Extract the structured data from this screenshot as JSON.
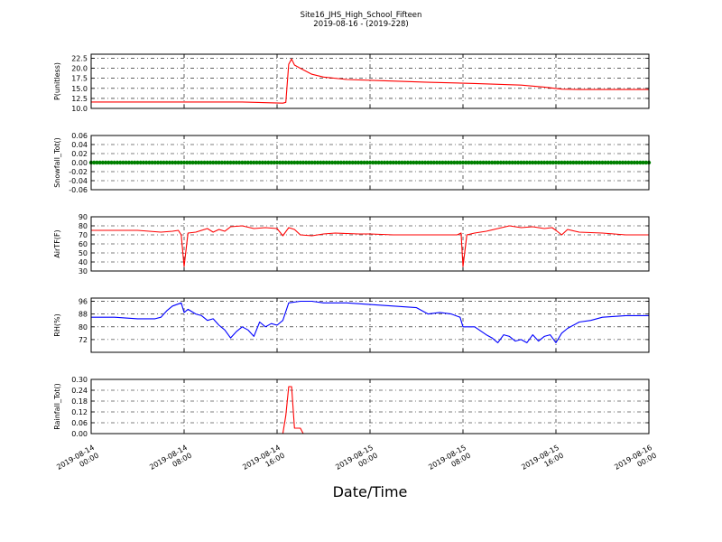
{
  "figure": {
    "title_line1": "Site16_JHS_High_School_Fifteen",
    "title_line2": "2019-08-16 - (2019-228)",
    "xlabel": "Date/Time"
  },
  "chart_data": {
    "type": "line",
    "x_range": [
      "2019-08-14 00:00",
      "2019-08-16 00:00"
    ],
    "x_ticks": [
      {
        "line1": "2019-08-14",
        "line2": "00:00"
      },
      {
        "line1": "2019-08-14",
        "line2": "08:00"
      },
      {
        "line1": "2019-08-14",
        "line2": "16:00"
      },
      {
        "line1": "2019-08-15",
        "line2": "00:00"
      },
      {
        "line1": "2019-08-15",
        "line2": "08:00"
      },
      {
        "line1": "2019-08-15",
        "line2": "16:00"
      },
      {
        "line1": "2019-08-16",
        "line2": "00:00"
      }
    ],
    "grid": true,
    "panels": [
      {
        "ylabel": "P(unitless)",
        "color": "#ff0000",
        "marker": "none",
        "ylim": [
          10.0,
          23.5
        ],
        "yticks": [
          10.0,
          12.5,
          15.0,
          17.5,
          20.0,
          22.5
        ],
        "tick_decimals": 1,
        "x": [
          "2019-08-14 00:00",
          "2019-08-14 08:00",
          "2019-08-14 13:00",
          "2019-08-14 16:30",
          "2019-08-14 16:45",
          "2019-08-14 17:00",
          "2019-08-14 17:15",
          "2019-08-14 17:30",
          "2019-08-14 18:00",
          "2019-08-14 19:00",
          "2019-08-14 20:00",
          "2019-08-14 22:00",
          "2019-08-15 01:00",
          "2019-08-15 05:00",
          "2019-08-15 09:00",
          "2019-08-15 11:00",
          "2019-08-15 13:00",
          "2019-08-15 15:00",
          "2019-08-15 16:30",
          "2019-08-15 18:00",
          "2019-08-15 21:00",
          "2019-08-16 00:00"
        ],
        "y": [
          11.6,
          11.6,
          11.6,
          11.3,
          11.5,
          21.0,
          22.3,
          20.8,
          20.0,
          18.5,
          17.8,
          17.2,
          16.9,
          16.5,
          16.2,
          16.0,
          15.8,
          15.3,
          14.8,
          14.7,
          14.7,
          14.7
        ]
      },
      {
        "ylabel": "Snowfall_Tot()",
        "color": "#008000",
        "marker": "dot",
        "ylim": [
          -0.06,
          0.06
        ],
        "yticks": [
          -0.06,
          -0.04,
          -0.02,
          0.0,
          0.02,
          0.04,
          0.06
        ],
        "tick_decimals": 2,
        "x": [
          "2019-08-14 00:00",
          "2019-08-16 00:00"
        ],
        "y": [
          0.0,
          0.0
        ],
        "point_interval_minutes": 15
      },
      {
        "ylabel": "AirTF(F)",
        "color": "#ff0000",
        "marker": "none",
        "ylim": [
          30,
          90
        ],
        "yticks": [
          30,
          40,
          50,
          60,
          70,
          80,
          90
        ],
        "tick_decimals": 0,
        "x": [
          "2019-08-14 00:00",
          "2019-08-14 04:00",
          "2019-08-14 05:00",
          "2019-08-14 06:00",
          "2019-08-14 07:00",
          "2019-08-14 07:30",
          "2019-08-14 07:45",
          "2019-08-14 08:00",
          "2019-08-14 08:20",
          "2019-08-14 09:00",
          "2019-08-14 10:00",
          "2019-08-14 10:30",
          "2019-08-14 11:00",
          "2019-08-14 11:30",
          "2019-08-14 12:00",
          "2019-08-14 13:00",
          "2019-08-14 14:00",
          "2019-08-14 15:00",
          "2019-08-14 16:00",
          "2019-08-14 16:30",
          "2019-08-14 17:00",
          "2019-08-14 17:30",
          "2019-08-14 18:00",
          "2019-08-14 19:00",
          "2019-08-14 20:00",
          "2019-08-14 21:00",
          "2019-08-14 23:00",
          "2019-08-15 00:00",
          "2019-08-15 02:00",
          "2019-08-15 04:00",
          "2019-08-15 06:00",
          "2019-08-15 07:30",
          "2019-08-15 07:50",
          "2019-08-15 08:00",
          "2019-08-15 08:20",
          "2019-08-15 09:00",
          "2019-08-15 10:00",
          "2019-08-15 11:00",
          "2019-08-15 12:00",
          "2019-08-15 13:00",
          "2019-08-15 14:00",
          "2019-08-15 15:00",
          "2019-08-15 15:40",
          "2019-08-15 16:00",
          "2019-08-15 16:30",
          "2019-08-15 17:00",
          "2019-08-15 18:00",
          "2019-08-15 20:00",
          "2019-08-15 22:00",
          "2019-08-16 00:00"
        ],
        "y": [
          75,
          75,
          74,
          73,
          74,
          75,
          70,
          35,
          72,
          73,
          77,
          73,
          76,
          74,
          79,
          80,
          77,
          78,
          77,
          69,
          78,
          76,
          70,
          69,
          71,
          72,
          71,
          71,
          70,
          70,
          70,
          70,
          72,
          35,
          70,
          72,
          74,
          77,
          80,
          78,
          79,
          77,
          78,
          75,
          70,
          76,
          73,
          72,
          70,
          70
        ]
      },
      {
        "ylabel": "RH(%)",
        "color": "#0000ff",
        "marker": "none",
        "ylim": [
          64,
          98
        ],
        "yticks": [
          72,
          80,
          88,
          96
        ],
        "tick_decimals": 0,
        "x": [
          "2019-08-14 00:00",
          "2019-08-14 02:00",
          "2019-08-14 04:00",
          "2019-08-14 05:30",
          "2019-08-14 06:00",
          "2019-08-14 06:30",
          "2019-08-14 07:00",
          "2019-08-14 07:45",
          "2019-08-14 08:00",
          "2019-08-14 08:20",
          "2019-08-14 09:00",
          "2019-08-14 09:30",
          "2019-08-14 10:00",
          "2019-08-14 10:30",
          "2019-08-14 11:00",
          "2019-08-14 11:30",
          "2019-08-14 12:00",
          "2019-08-14 12:30",
          "2019-08-14 13:00",
          "2019-08-14 13:30",
          "2019-08-14 14:00",
          "2019-08-14 14:30",
          "2019-08-14 15:00",
          "2019-08-14 15:30",
          "2019-08-14 16:00",
          "2019-08-14 16:30",
          "2019-08-14 17:00",
          "2019-08-14 18:00",
          "2019-08-14 19:00",
          "2019-08-14 20:00",
          "2019-08-14 22:00",
          "2019-08-15 00:00",
          "2019-08-15 02:00",
          "2019-08-15 04:00",
          "2019-08-15 05:00",
          "2019-08-15 06:00",
          "2019-08-15 07:00",
          "2019-08-15 07:45",
          "2019-08-15 08:00",
          "2019-08-15 09:00",
          "2019-08-15 10:00",
          "2019-08-15 10:30",
          "2019-08-15 11:00",
          "2019-08-15 11:30",
          "2019-08-15 12:00",
          "2019-08-15 12:30",
          "2019-08-15 13:00",
          "2019-08-15 13:30",
          "2019-08-15 14:00",
          "2019-08-15 14:30",
          "2019-08-15 15:00",
          "2019-08-15 15:30",
          "2019-08-15 16:00",
          "2019-08-15 16:30",
          "2019-08-15 17:00",
          "2019-08-15 18:00",
          "2019-08-15 19:00",
          "2019-08-15 20:00",
          "2019-08-15 22:00",
          "2019-08-16 00:00"
        ],
        "y": [
          86,
          86,
          85,
          85,
          86,
          90,
          93,
          95,
          89,
          91,
          88,
          87,
          84,
          85,
          81,
          78,
          73,
          77,
          80,
          78,
          74,
          83,
          80,
          82,
          81,
          84,
          95,
          96,
          96,
          95,
          95,
          94,
          93,
          92,
          88,
          89,
          88,
          86,
          80,
          80,
          75,
          73,
          70,
          75,
          74,
          71,
          72,
          70,
          75,
          71,
          74,
          75,
          70,
          76,
          79,
          83,
          84,
          86,
          87,
          87
        ]
      },
      {
        "ylabel": "Rainfall_Tot()",
        "color": "#ff0000",
        "marker": "none",
        "ylim": [
          0.0,
          0.3
        ],
        "yticks": [
          0.0,
          0.06,
          0.12,
          0.18,
          0.24,
          0.3
        ],
        "tick_decimals": 2,
        "x": [
          "2019-08-14 00:00",
          "2019-08-14 16:30",
          "2019-08-14 16:45",
          "2019-08-14 17:00",
          "2019-08-14 17:15",
          "2019-08-14 17:30",
          "2019-08-14 17:45",
          "2019-08-14 18:00",
          "2019-08-14 18:15",
          "2019-08-14 18:30",
          "2019-08-16 00:00"
        ],
        "y": [
          0.0,
          0.0,
          0.1,
          0.26,
          0.26,
          0.03,
          0.03,
          0.03,
          0.0,
          0.0,
          0.0
        ]
      }
    ]
  }
}
